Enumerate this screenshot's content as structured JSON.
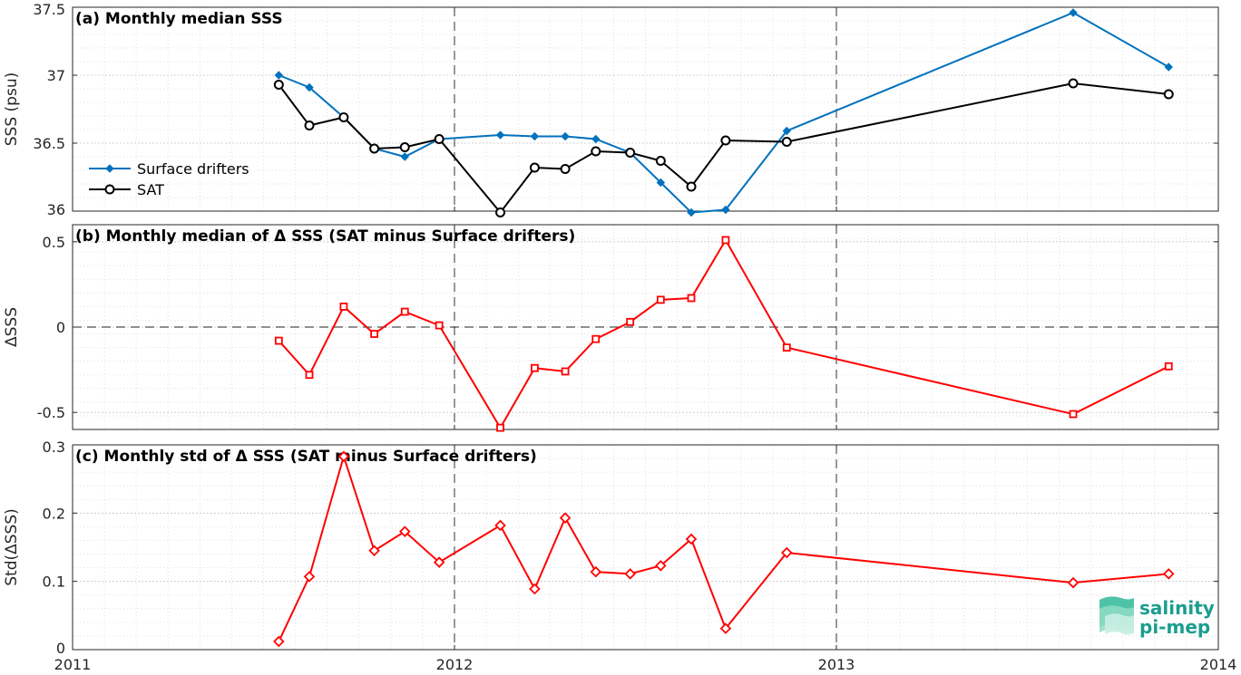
{
  "chart_data": [
    {
      "type": "line",
      "title": "(a) Monthly median SSS",
      "ylabel": "SSS (psu)",
      "xlim": [
        2011,
        2014
      ],
      "ylim": [
        36,
        37.5
      ],
      "yticks": [
        "36",
        "36.5",
        "37",
        "37.5"
      ],
      "ytick_values": [
        36,
        36.5,
        37,
        37.5
      ],
      "grid": true,
      "legend_position": "left",
      "series": [
        {
          "name": "Surface drifters",
          "color": "#0072bd",
          "marker": "diamond",
          "x": [
            2011.54,
            2011.62,
            2011.71,
            2011.79,
            2011.87,
            2011.96,
            2012.12,
            2012.21,
            2012.29,
            2012.37,
            2012.46,
            2012.54,
            2012.62,
            2012.71,
            2012.87,
            2013.62,
            2013.87
          ],
          "y": [
            37.0,
            36.91,
            36.69,
            36.46,
            36.4,
            36.53,
            36.56,
            36.55,
            36.55,
            36.53,
            36.43,
            36.21,
            35.99,
            36.01,
            36.59,
            37.46,
            37.06
          ]
        },
        {
          "name": "SAT",
          "color": "#000000",
          "marker": "circle",
          "x": [
            2011.54,
            2011.62,
            2011.71,
            2011.79,
            2011.87,
            2011.96,
            2012.12,
            2012.21,
            2012.29,
            2012.37,
            2012.46,
            2012.54,
            2012.62,
            2012.71,
            2012.87,
            2013.62,
            2013.87
          ],
          "y": [
            36.93,
            36.63,
            36.69,
            36.46,
            36.47,
            36.53,
            35.99,
            36.32,
            36.31,
            36.44,
            36.43,
            36.37,
            36.18,
            36.52,
            36.51,
            36.94,
            36.86
          ]
        }
      ]
    },
    {
      "type": "line",
      "title": "(b) Monthly median of Δ SSS (SAT minus Surface drifters)",
      "ylabel": "ΔSSS",
      "xlim": [
        2011,
        2014
      ],
      "ylim": [
        -0.6,
        0.6
      ],
      "yticks": [
        "-0.5",
        "0",
        "0.5"
      ],
      "ytick_values": [
        -0.5,
        0,
        0.5
      ],
      "zero_line": true,
      "grid": true,
      "series": [
        {
          "color": "#ff0000",
          "marker": "square",
          "x": [
            2011.54,
            2011.62,
            2011.71,
            2011.79,
            2011.87,
            2011.96,
            2012.12,
            2012.21,
            2012.29,
            2012.37,
            2012.46,
            2012.54,
            2012.62,
            2012.71,
            2012.87,
            2013.62,
            2013.87
          ],
          "y": [
            -0.08,
            -0.28,
            0.12,
            -0.04,
            0.09,
            0.01,
            -0.59,
            -0.24,
            -0.26,
            -0.07,
            0.03,
            0.16,
            0.17,
            0.51,
            -0.12,
            -0.51,
            -0.23
          ]
        }
      ]
    },
    {
      "type": "line",
      "title": "(c) Monthly std of Δ SSS (SAT minus Surface drifters)",
      "ylabel": "Std(ΔSSS)",
      "xlim": [
        2011,
        2014
      ],
      "ylim": [
        0,
        0.3
      ],
      "yticks": [
        "0",
        "0.1",
        "0.2",
        "0.3"
      ],
      "ytick_values": [
        0,
        0.1,
        0.2,
        0.3
      ],
      "xticks": [
        "2011",
        "2012",
        "2013",
        "2014"
      ],
      "xtick_values": [
        2011,
        2012,
        2013,
        2014
      ],
      "grid": true,
      "series": [
        {
          "color": "#ff0000",
          "marker": "diamond",
          "x": [
            2011.54,
            2011.62,
            2011.71,
            2011.79,
            2011.87,
            2011.96,
            2012.12,
            2012.21,
            2012.29,
            2012.37,
            2012.46,
            2012.54,
            2012.62,
            2012.71,
            2012.87,
            2013.62,
            2013.87
          ],
          "y": [
            0.012,
            0.107,
            0.283,
            0.145,
            0.173,
            0.128,
            0.182,
            0.089,
            0.193,
            0.114,
            0.111,
            0.123,
            0.162,
            0.031,
            0.142,
            0.098,
            0.111
          ]
        }
      ]
    }
  ],
  "logo": {
    "line1": "salinity",
    "line2": "pi-mep",
    "color": "#1a9e8f"
  }
}
